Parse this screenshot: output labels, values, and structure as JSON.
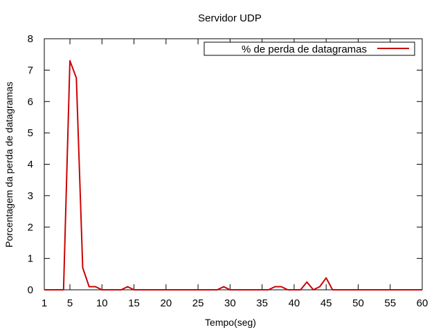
{
  "chart_data": {
    "type": "line",
    "title": "Servidor UDP",
    "xlabel": "Tempo(seg)",
    "ylabel": "Porcentagem da perda de datagramas",
    "xlim": [
      1,
      60
    ],
    "ylim": [
      0,
      8
    ],
    "xticks": [
      1,
      5,
      10,
      15,
      20,
      25,
      30,
      35,
      40,
      45,
      50,
      55,
      60
    ],
    "yticks": [
      0,
      1,
      2,
      3,
      4,
      5,
      6,
      7,
      8
    ],
    "grid": false,
    "legend": "top-right",
    "series": [
      {
        "name": "% de perda de datagramas",
        "color": "#cc0000",
        "x": [
          1,
          2,
          3,
          4,
          5,
          6,
          7,
          8,
          9,
          10,
          11,
          12,
          13,
          14,
          15,
          16,
          17,
          18,
          19,
          20,
          21,
          22,
          23,
          24,
          25,
          26,
          27,
          28,
          29,
          30,
          31,
          32,
          33,
          34,
          35,
          36,
          37,
          38,
          39,
          40,
          41,
          42,
          43,
          44,
          45,
          46,
          47,
          48,
          49,
          50,
          51,
          52,
          53,
          54,
          55,
          56,
          57,
          58,
          59,
          60
        ],
        "y": [
          0,
          0,
          0,
          0,
          7.3,
          6.75,
          0.7,
          0.1,
          0.1,
          0,
          0,
          0,
          0,
          0.1,
          0,
          0,
          0,
          0,
          0,
          0,
          0,
          0,
          0,
          0,
          0,
          0,
          0,
          0,
          0.1,
          0,
          0,
          0,
          0,
          0,
          0,
          0,
          0.1,
          0.1,
          0,
          0,
          0,
          0.25,
          0,
          0.1,
          0.38,
          0,
          0,
          0,
          0,
          0,
          0,
          0,
          0,
          0,
          0,
          0,
          0,
          0,
          0,
          0
        ]
      }
    ]
  }
}
